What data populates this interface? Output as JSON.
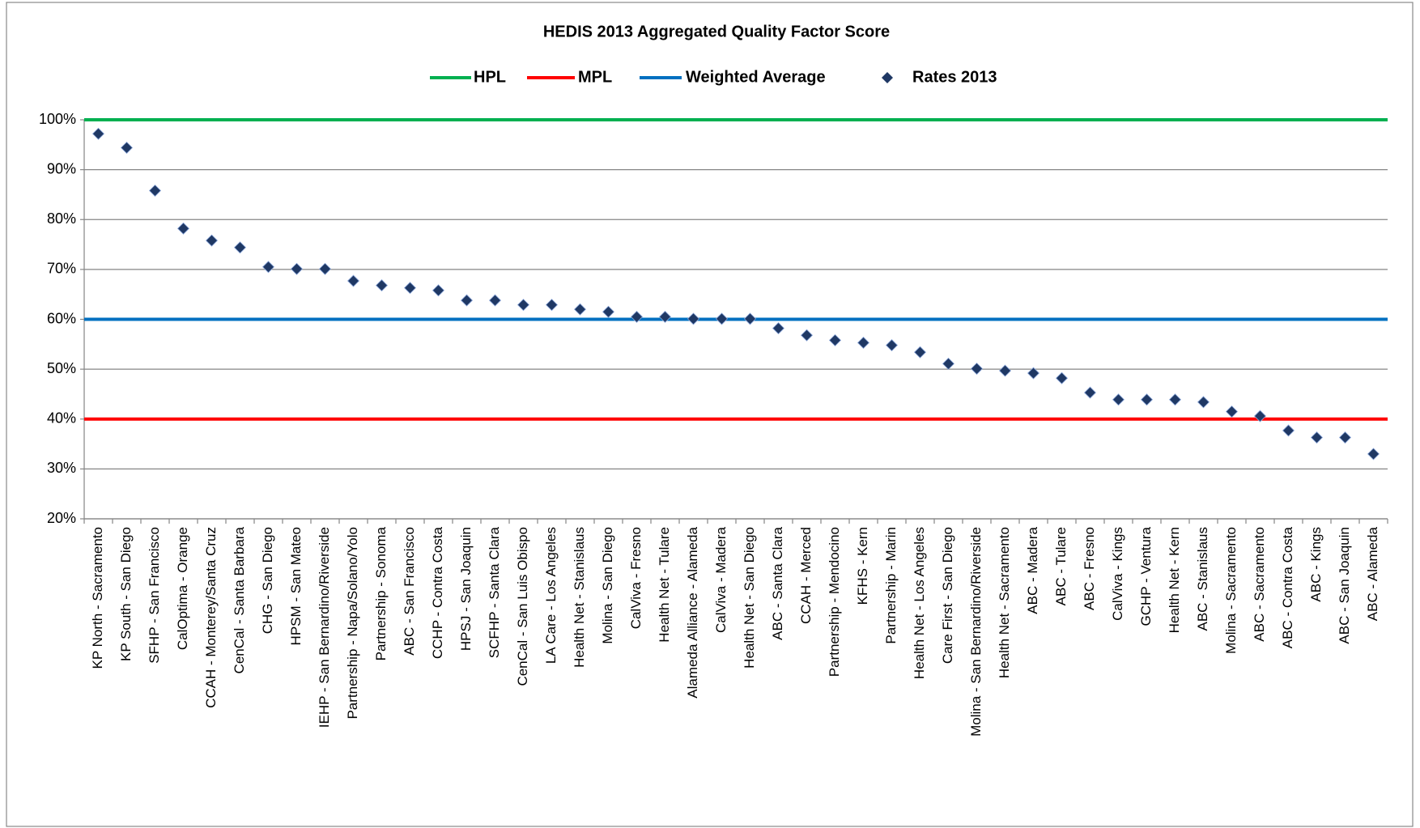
{
  "chart_data": {
    "type": "scatter",
    "title": "HEDIS 2013 Aggregated Quality Factor Score",
    "categories": [
      "KP North - Sacramento",
      "KP South - San Diego",
      "SFHP - San Francisco",
      "CalOptima - Orange",
      "CCAH - Monterey/Santa Cruz",
      "CenCal - Santa Barbara",
      "CHG - San Diego",
      "HPSM - San Mateo",
      "IEHP - San Bernardino/Riverside",
      "Partnership - Napa/Solano/Yolo",
      "Partnership - Sonoma",
      "ABC - San Francisco",
      "CCHP - Contra Costa",
      "HPSJ - San Joaquin",
      "SCFHP - Santa Clara",
      "CenCal - San Luis Obispo",
      "LA Care - Los Angeles",
      "Health Net - Stanislaus",
      "Molina - San Diego",
      "CalViva - Fresno",
      "Health Net - Tulare",
      "Alameda Alliance - Alameda",
      "CalViva - Madera",
      "Health Net - San Diego",
      "ABC - Santa Clara",
      "CCAH - Merced",
      "Partnership - Mendocino",
      "KFHS - Kern",
      "Partnership - Marin",
      "Health Net - Los Angeles",
      "Care First - San Diego",
      "Molina - San Bernardino/Riverside",
      "Health Net - Sacramento",
      "ABC - Madera",
      "ABC - Tulare",
      "ABC - Fresno",
      "CalViva - Kings",
      "GCHP - Ventura",
      "Health Net - Kern",
      "ABC - Stanislaus",
      "Molina - Sacramento",
      "ABC - Sacramento",
      "ABC - Contra Costa",
      "ABC - Kings",
      "ABC - San Joaquin",
      "ABC - Alameda"
    ],
    "reference_lines": [
      {
        "name": "HPL",
        "color": "#00b050",
        "value": 100
      },
      {
        "name": "MPL",
        "color": "#ff0000",
        "value": 40
      },
      {
        "name": "Weighted Average",
        "color": "#0070c0",
        "value": 60
      }
    ],
    "series": [
      {
        "name": "Rates 2013",
        "color": "#1f3864",
        "values": [
          97.2,
          94.4,
          85.8,
          78.2,
          75.8,
          74.4,
          70.5,
          70.1,
          70.1,
          67.7,
          66.8,
          66.3,
          65.8,
          63.8,
          63.8,
          62.9,
          62.9,
          62.0,
          61.5,
          60.5,
          60.5,
          60.1,
          60.1,
          60.1,
          58.2,
          56.8,
          55.8,
          55.3,
          54.8,
          53.4,
          51.1,
          50.1,
          49.7,
          49.2,
          48.2,
          45.3,
          43.9,
          43.9,
          43.9,
          43.4,
          41.5,
          40.6,
          37.7,
          36.3,
          36.3,
          33.0
        ]
      }
    ],
    "ylim": [
      20,
      100
    ],
    "yticks": [
      {
        "value": 20,
        "label": "20%"
      },
      {
        "value": 30,
        "label": "30%"
      },
      {
        "value": 40,
        "label": "40%"
      },
      {
        "value": 50,
        "label": "50%"
      },
      {
        "value": 60,
        "label": "60%"
      },
      {
        "value": 70,
        "label": "70%"
      },
      {
        "value": 80,
        "label": "80%"
      },
      {
        "value": 90,
        "label": "90%"
      },
      {
        "value": 100,
        "label": "100%"
      }
    ],
    "grid": true
  }
}
